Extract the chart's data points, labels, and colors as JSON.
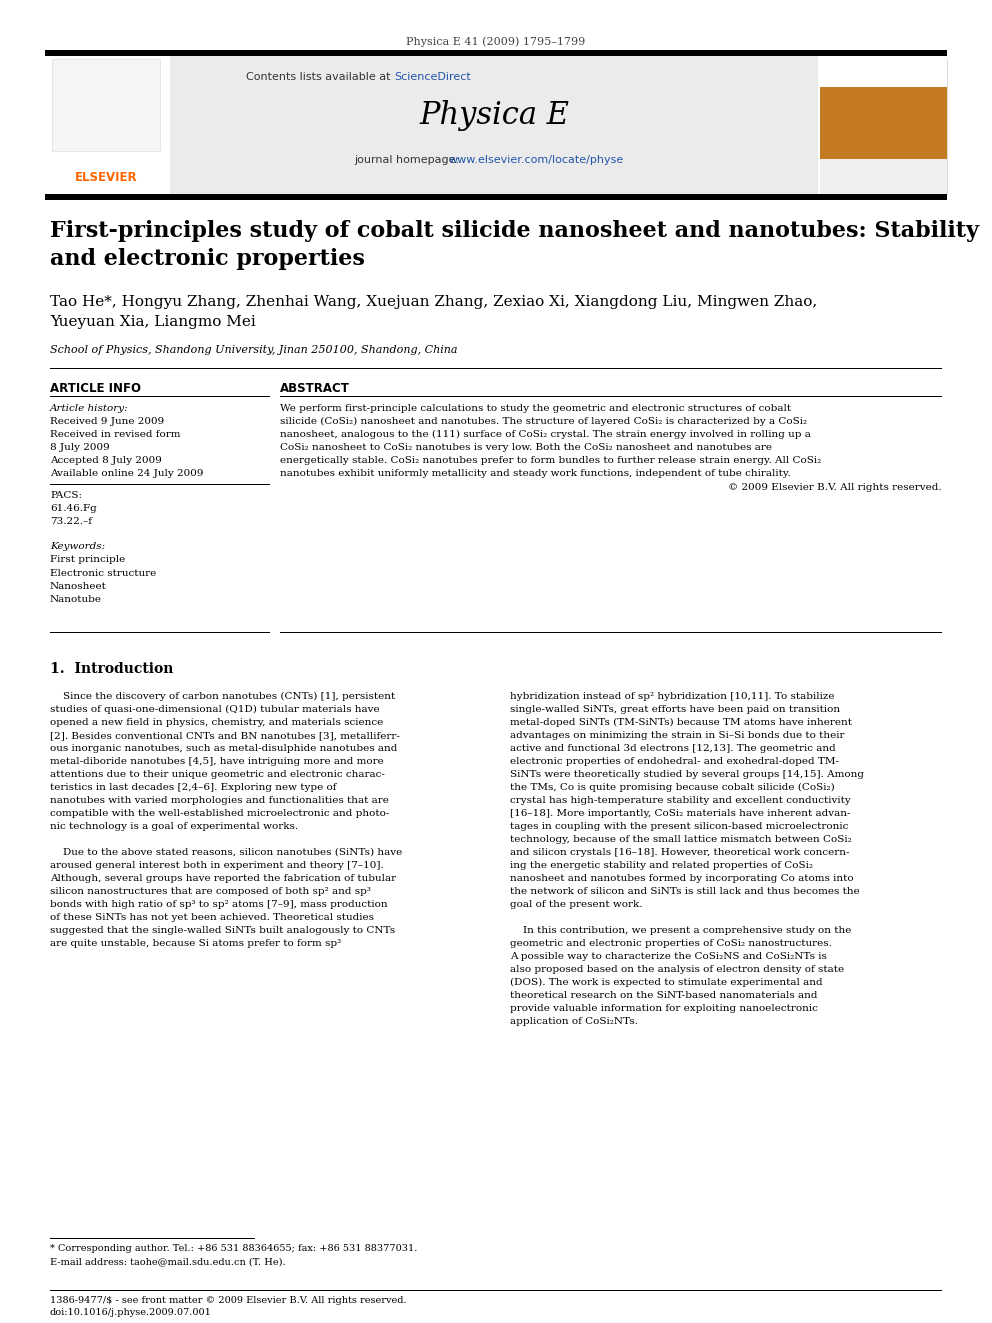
{
  "journal_line": "Physica E 41 (2009) 1795–1799",
  "journal_name": "Physica E",
  "journal_homepage_plain": "journal homepage: ",
  "journal_homepage_link": "www.elsevier.com/locate/physe",
  "contents_plain": "Contents lists available at ",
  "contents_link": "ScienceDirect",
  "title": "First-principles study of cobalt silicide nanosheet and nanotubes: Stability\nand electronic properties",
  "authors_line1": "Tao He*, Hongyu Zhang, Zhenhai Wang, Xuejuan Zhang, Zexiao Xi, Xiangdong Liu, Mingwen Zhao,",
  "authors_line2": "Yueyuan Xia, Liangmo Mei",
  "affiliation": "School of Physics, Shandong University, Jinan 250100, Shandong, China",
  "article_info_header": "ARTICLE INFO",
  "abstract_header": "ABSTRACT",
  "article_history_label": "Article history:",
  "received": "Received 9 June 2009",
  "received_revised1": "Received in revised form",
  "received_revised2": "8 July 2009",
  "accepted": "Accepted 8 July 2009",
  "available": "Available online 24 July 2009",
  "pacs_label": "PACS:",
  "pacs1": "61.46.Fg",
  "pacs2": "73.22.–f",
  "keywords_label": "Keywords:",
  "keywords": [
    "First principle",
    "Electronic structure",
    "Nanosheet",
    "Nanotube"
  ],
  "abstract_lines": [
    "We perform first-principle calculations to study the geometric and electronic structures of cobalt",
    "silicide (CoSi₂) nanosheet and nanotubes. The structure of layered CoSi₂ is characterized by a CoSi₂",
    "nanosheet, analogous to the (111) surface of CoSi₂ crystal. The strain energy involved in rolling up a",
    "CoSi₂ nanosheet to CoSi₂ nanotubes is very low. Both the CoSi₂ nanosheet and nanotubes are",
    "energetically stable. CoSi₂ nanotubes prefer to form bundles to further release strain energy. All CoSi₂",
    "nanotubes exhibit uniformly metallicity and steady work functions, independent of tube chirality."
  ],
  "abstract_copyright": "© 2009 Elsevier B.V. All rights reserved.",
  "section1_header": "1.  Introduction",
  "col1_lines": [
    "    Since the discovery of carbon nanotubes (CNTs) [1], persistent",
    "studies of quasi-one-dimensional (Q1D) tubular materials have",
    "opened a new field in physics, chemistry, and materials science",
    "[2]. Besides conventional CNTs and BN nanotubes [3], metalliferr-",
    "ous inorganic nanotubes, such as metal-disulphide nanotubes and",
    "metal-diboride nanotubes [4,5], have intriguing more and more",
    "attentions due to their unique geometric and electronic charac-",
    "teristics in last decades [2,4–6]. Exploring new type of",
    "nanotubes with varied morphologies and functionalities that are",
    "compatible with the well-established microelectronic and photo-",
    "nic technology is a goal of experimental works.",
    "",
    "    Due to the above stated reasons, silicon nanotubes (SiNTs) have",
    "aroused general interest both in experiment and theory [7–10].",
    "Although, several groups have reported the fabrication of tubular",
    "silicon nanostructures that are composed of both sp² and sp³",
    "bonds with high ratio of sp³ to sp² atoms [7–9], mass production",
    "of these SiNTs has not yet been achieved. Theoretical studies",
    "suggested that the single-walled SiNTs built analogously to CNTs",
    "are quite unstable, because Si atoms prefer to form sp³"
  ],
  "col2_lines": [
    "hybridization instead of sp² hybridization [10,11]. To stabilize",
    "single-walled SiNTs, great efforts have been paid on transition",
    "metal-doped SiNTs (TM-SiNTs) because TM atoms have inherent",
    "advantages on minimizing the strain in Si–Si bonds due to their",
    "active and functional 3d electrons [12,13]. The geometric and",
    "electronic properties of endohedral- and exohedral-doped TM-",
    "SiNTs were theoretically studied by several groups [14,15]. Among",
    "the TMs, Co is quite promising because cobalt silicide (CoSi₂)",
    "crystal has high-temperature stability and excellent conductivity",
    "[16–18]. More importantly, CoSi₂ materials have inherent advan-",
    "tages in coupling with the present silicon-based microelectronic",
    "technology, because of the small lattice mismatch between CoSi₂",
    "and silicon crystals [16–18]. However, theoretical work concern-",
    "ing the energetic stability and related properties of CoSi₂",
    "nanosheet and nanotubes formed by incorporating Co atoms into",
    "the network of silicon and SiNTs is still lack and thus becomes the",
    "goal of the present work.",
    "",
    "    In this contribution, we present a comprehensive study on the",
    "geometric and electronic properties of CoSi₂ nanostructures.",
    "A possible way to characterize the CoSi₂NS and CoSi₂NTs is",
    "also proposed based on the analysis of electron density of state",
    "(DOS). The work is expected to stimulate experimental and",
    "theoretical research on the SiNT-based nanomaterials and",
    "provide valuable information for exploiting nanoelectronic",
    "application of CoSi₂NTs."
  ],
  "footnote_star": "* Corresponding author. Tel.: +86 531 88364655; fax: +86 531 88377031.",
  "footnote_email": "E-mail address: taohe@mail.sdu.edu.cn (T. He).",
  "footer_left": "1386-9477/$ - see front matter © 2009 Elsevier B.V. All rights reserved.",
  "footer_doi": "doi:10.1016/j.physe.2009.07.001",
  "link_color": "#2255aa",
  "elsevier_orange": "#ff6600",
  "journal_cover_brown": "#c47a20"
}
